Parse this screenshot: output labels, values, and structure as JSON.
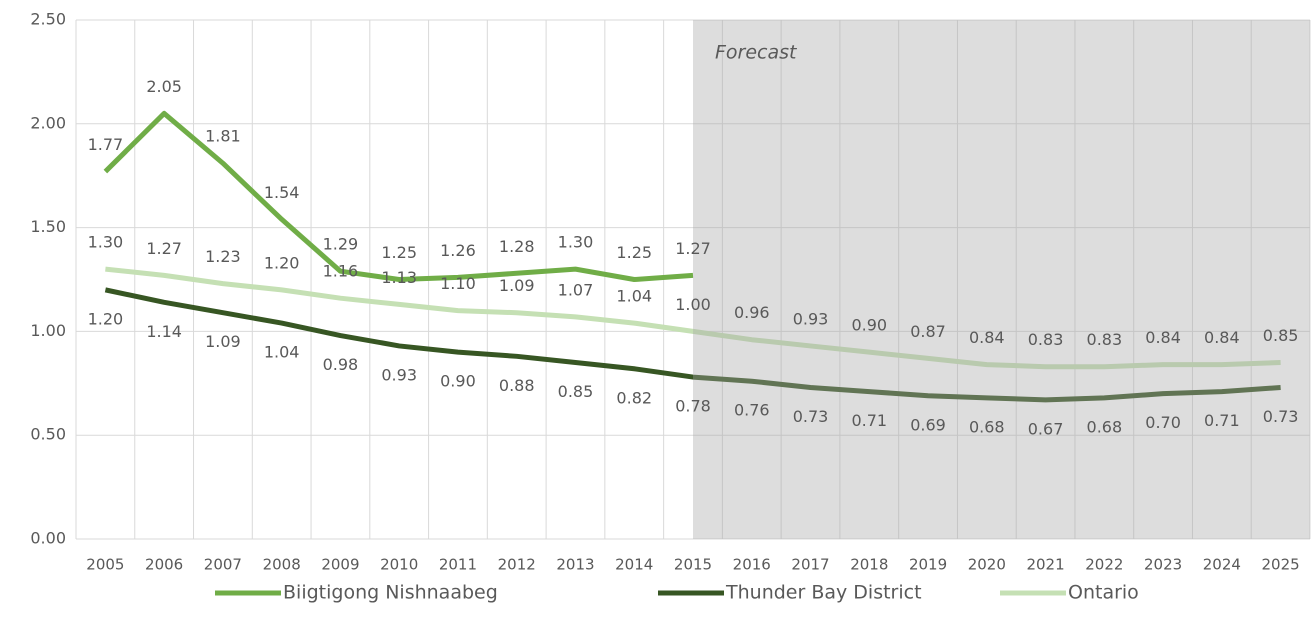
{
  "chart_data": {
    "type": "line",
    "categories": [
      "2005",
      "2006",
      "2007",
      "2008",
      "2009",
      "2010",
      "2011",
      "2012",
      "2013",
      "2014",
      "2015",
      "2016",
      "2017",
      "2018",
      "2019",
      "2020",
      "2021",
      "2022",
      "2023",
      "2024",
      "2025"
    ],
    "series": [
      {
        "name": "Biigtigong Nishnaabeg",
        "color": "#70ad47",
        "label_pos": "above",
        "values": [
          1.77,
          2.05,
          1.81,
          1.54,
          1.29,
          1.25,
          1.26,
          1.28,
          1.3,
          1.25,
          1.27,
          null,
          null,
          null,
          null,
          null,
          null,
          null,
          null,
          null,
          null
        ],
        "value_labels": [
          "1.77",
          "2.05",
          "1.81",
          "1.54",
          "1.29",
          "1.25",
          "1.26",
          "1.28",
          "1.30",
          "1.25",
          "1.27",
          null,
          null,
          null,
          null,
          null,
          null,
          null,
          null,
          null,
          null
        ]
      },
      {
        "name": "Thunder Bay District",
        "color": "#375623",
        "label_pos": "below",
        "values": [
          1.2,
          1.14,
          1.09,
          1.04,
          0.98,
          0.93,
          0.9,
          0.88,
          0.85,
          0.82,
          0.78,
          0.76,
          0.73,
          0.71,
          0.69,
          0.68,
          0.67,
          0.68,
          0.7,
          0.71,
          0.73
        ],
        "value_labels": [
          "1.20",
          "1.14",
          "1.09",
          "1.04",
          "0.98",
          "0.93",
          "0.90",
          "0.88",
          "0.85",
          "0.82",
          "0.78",
          "0.76",
          "0.73",
          "0.71",
          "0.69",
          "0.68",
          "0.67",
          "0.68",
          "0.70",
          "0.71",
          "0.73"
        ]
      },
      {
        "name": "Ontario",
        "color": "#c5e0b4",
        "label_pos": "above",
        "values": [
          1.3,
          1.27,
          1.23,
          1.2,
          1.16,
          1.13,
          1.1,
          1.09,
          1.07,
          1.04,
          1.0,
          0.96,
          0.93,
          0.9,
          0.87,
          0.84,
          0.83,
          0.83,
          0.84,
          0.84,
          0.85
        ],
        "value_labels": [
          "1.30",
          "1.27",
          "1.23",
          "1.20",
          "1.16",
          "1.13",
          "1.10",
          "1.09",
          "1.07",
          "1.04",
          "1.00",
          "0.96",
          "0.93",
          "0.90",
          "0.87",
          "0.84",
          "0.83",
          "0.83",
          "0.84",
          "0.84",
          "0.85"
        ]
      }
    ],
    "annotation": {
      "text": "Forecast",
      "x": "2015"
    },
    "ylim": [
      0,
      2.5
    ],
    "yticks": [
      {
        "value": 0,
        "label": "0.00"
      },
      {
        "value": 0.5,
        "label": "0.50"
      },
      {
        "value": 1,
        "label": "1.00"
      },
      {
        "value": 1.5,
        "label": "1.50"
      },
      {
        "value": 2,
        "label": "2.00"
      },
      {
        "value": 2.5,
        "label": "2.50"
      }
    ],
    "grid": true,
    "legend": "bottom"
  }
}
